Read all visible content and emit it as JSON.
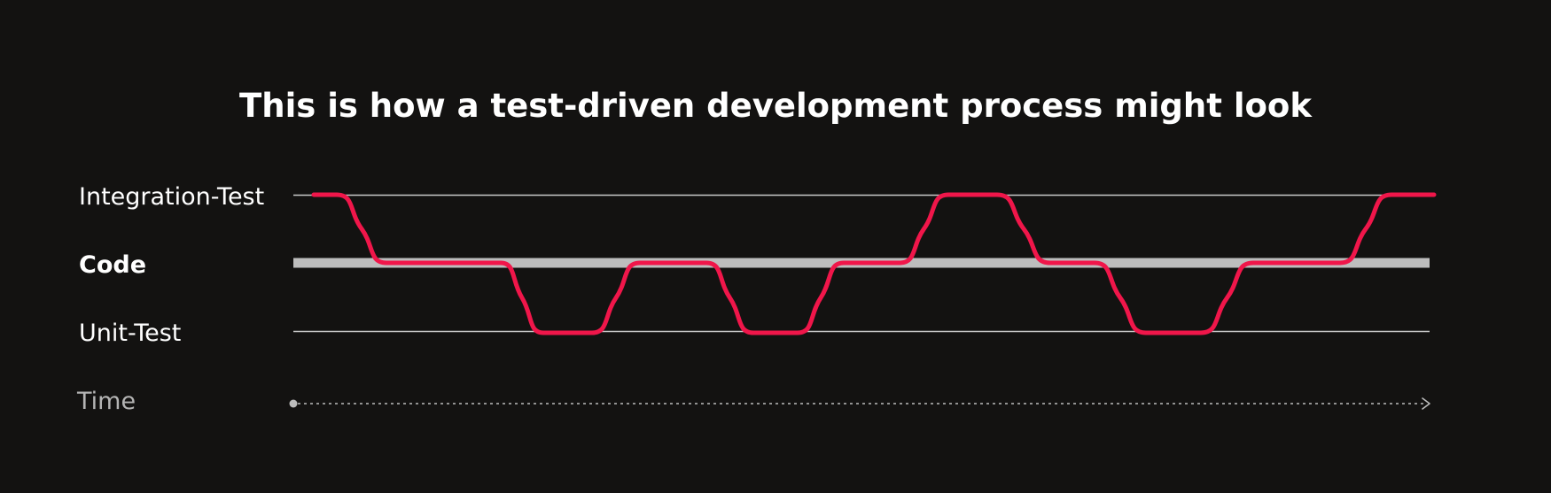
{
  "title": "This is how a test-driven development process might look",
  "lanes": [
    {
      "key": "integration",
      "label": "Integration-Test",
      "emphasis": "normal",
      "line_color": "#c9c9c9"
    },
    {
      "key": "code",
      "label": "Code",
      "emphasis": "bold",
      "line_color": "#bdbdbd"
    },
    {
      "key": "unit",
      "label": "Unit-Test",
      "emphasis": "normal",
      "line_color": "#c9c9c9"
    }
  ],
  "time_axis": {
    "label": "Time",
    "style": "dotted-arrow",
    "color": "#bdbdbd"
  },
  "process_path": {
    "color": "#f0164a",
    "sequence": [
      "integration",
      "code",
      "unit",
      "code",
      "unit",
      "code",
      "integration",
      "code",
      "unit",
      "code",
      "integration"
    ]
  },
  "colors": {
    "background": "#131211",
    "text": "#ffffff",
    "muted_text": "#b4b4b4",
    "accent": "#f0164a"
  }
}
